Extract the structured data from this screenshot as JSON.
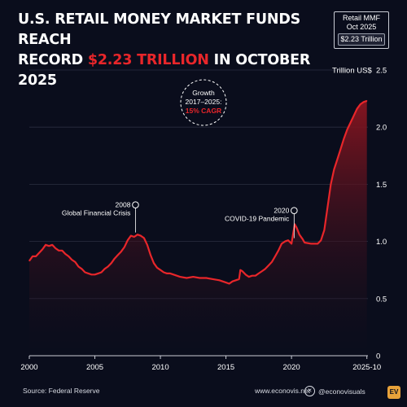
{
  "header": {
    "title_line1": "U.S. RETAIL MONEY MARKET FUNDS REACH",
    "title_line2_pre": "RECORD ",
    "title_line2_accent": "$2.23 TRILLION",
    "title_line2_post": " IN OCTOBER 2025"
  },
  "badge": {
    "line1": "Retail MMF",
    "line2": "Oct 2025",
    "value": "$2.23 Trillion"
  },
  "footer": {
    "source": "Source: Federal Reserve",
    "site": "www.econovis.net",
    "handle": "@econovisuals",
    "x_icon": "x-logo-icon",
    "logo_text": "EV"
  },
  "colors": {
    "background": "#0a0d1c",
    "line": "#e8262a",
    "area_top": "#8a1520",
    "grid": "#2a2e40",
    "text": "#ffffff"
  },
  "chart_data": {
    "type": "area",
    "ylabel": "Trillion US$",
    "ylim": [
      0,
      2.5
    ],
    "yticks": [
      0,
      0.5,
      1.0,
      1.5,
      2.0,
      2.5
    ],
    "ytick_labels": [
      "0",
      "0.5",
      "1.0",
      "1.5",
      "2.0",
      "2.5"
    ],
    "xlim": [
      2000,
      2025.83
    ],
    "xticks": [
      2000,
      2005,
      2010,
      2015,
      2020,
      2025.75
    ],
    "xtick_labels": [
      "2000",
      "2005",
      "2010",
      "2015",
      "2020",
      "2025-10"
    ],
    "grid": "horizontal",
    "legend": "none",
    "series": [
      {
        "x": [
          2000,
          2000.25,
          2000.5,
          2000.75,
          2001,
          2001.25,
          2001.5,
          2001.75,
          2002,
          2002.25,
          2002.5,
          2002.75,
          2003,
          2003.25,
          2003.5,
          2003.75,
          2004,
          2004.25,
          2004.5,
          2004.75,
          2005,
          2005.25,
          2005.5,
          2005.75,
          2006,
          2006.25,
          2006.5,
          2006.75,
          2007,
          2007.25,
          2007.5,
          2007.75,
          2008,
          2008.25,
          2008.5,
          2008.75,
          2009,
          2009.25,
          2009.5,
          2009.75,
          2010,
          2010.25,
          2010.5,
          2010.75,
          2011,
          2011.5,
          2012,
          2012.5,
          2013,
          2013.5,
          2014,
          2014.5,
          2015,
          2015.25,
          2015.5,
          2015.75,
          2016,
          2016.1,
          2016.25,
          2016.5,
          2016.75,
          2017,
          2017.25,
          2017.5,
          2017.75,
          2018,
          2018.25,
          2018.5,
          2018.75,
          2019,
          2019.25,
          2019.5,
          2019.75,
          2020,
          2020.1,
          2020.25,
          2020.4,
          2020.6,
          2020.85,
          2021,
          2021.5,
          2022,
          2022.25,
          2022.5,
          2022.75,
          2023,
          2023.25,
          2023.5,
          2023.75,
          2024,
          2024.25,
          2024.5,
          2024.75,
          2025,
          2025.25,
          2025.5,
          2025.75
        ],
        "y": [
          0.83,
          0.87,
          0.87,
          0.9,
          0.93,
          0.97,
          0.96,
          0.97,
          0.94,
          0.92,
          0.92,
          0.89,
          0.87,
          0.84,
          0.82,
          0.78,
          0.76,
          0.73,
          0.72,
          0.71,
          0.71,
          0.72,
          0.73,
          0.76,
          0.78,
          0.81,
          0.85,
          0.88,
          0.91,
          0.95,
          1.01,
          1.05,
          1.04,
          1.06,
          1.05,
          1.03,
          0.97,
          0.88,
          0.81,
          0.77,
          0.75,
          0.73,
          0.72,
          0.72,
          0.71,
          0.69,
          0.68,
          0.69,
          0.68,
          0.68,
          0.67,
          0.66,
          0.64,
          0.63,
          0.65,
          0.66,
          0.67,
          0.75,
          0.74,
          0.71,
          0.69,
          0.7,
          0.7,
          0.72,
          0.74,
          0.76,
          0.79,
          0.82,
          0.87,
          0.92,
          0.98,
          1.0,
          1.01,
          0.98,
          1.05,
          1.15,
          1.12,
          1.06,
          1.02,
          0.99,
          0.98,
          0.98,
          1.01,
          1.1,
          1.3,
          1.5,
          1.63,
          1.72,
          1.81,
          1.9,
          1.98,
          2.04,
          2.1,
          2.16,
          2.2,
          2.22,
          2.23
        ]
      }
    ],
    "annotations": [
      {
        "year": "2008",
        "text": "Global Financial Crisis",
        "x": 2008.1,
        "y": 1.05
      },
      {
        "year": "2020",
        "text": "COVID-19 Pandemic",
        "x": 2020.2,
        "y": 1.0
      }
    ],
    "callout": {
      "line1": "Growth",
      "line2": "2017–2025:",
      "line3": "15% CAGR"
    }
  }
}
